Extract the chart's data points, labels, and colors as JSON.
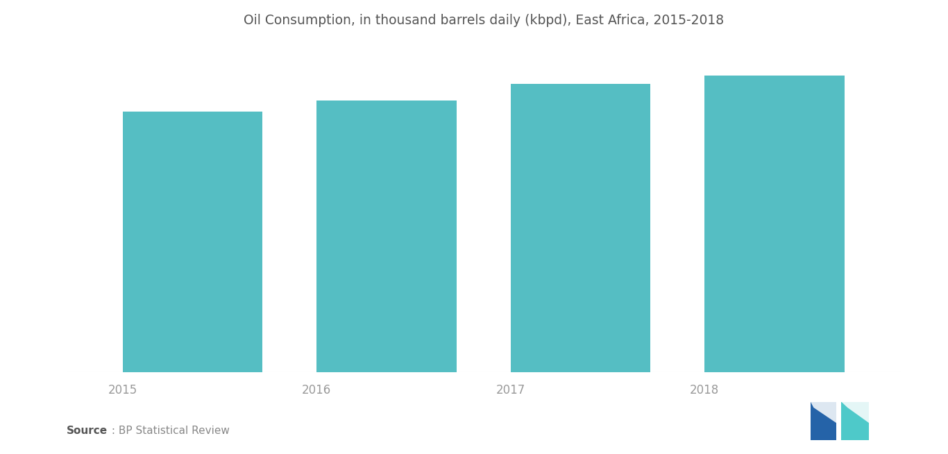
{
  "title": "Oil Consumption, in thousand barrels daily (kbpd), East Africa, 2015-2018",
  "categories": [
    "2015",
    "2016",
    "2017",
    "2018"
  ],
  "values": [
    470,
    490,
    520,
    535
  ],
  "bar_color": "#55BEC3",
  "background_color": "#FFFFFF",
  "title_fontsize": 13.5,
  "tick_fontsize": 12,
  "source_text_bold": "Source",
  "source_text_regular": " : BP Statistical Review",
  "ylim": [
    0,
    590
  ],
  "bar_width": 0.72,
  "title_color": "#555555",
  "tick_color": "#999999",
  "source_color_bold": "#555555",
  "source_color_regular": "#888888"
}
